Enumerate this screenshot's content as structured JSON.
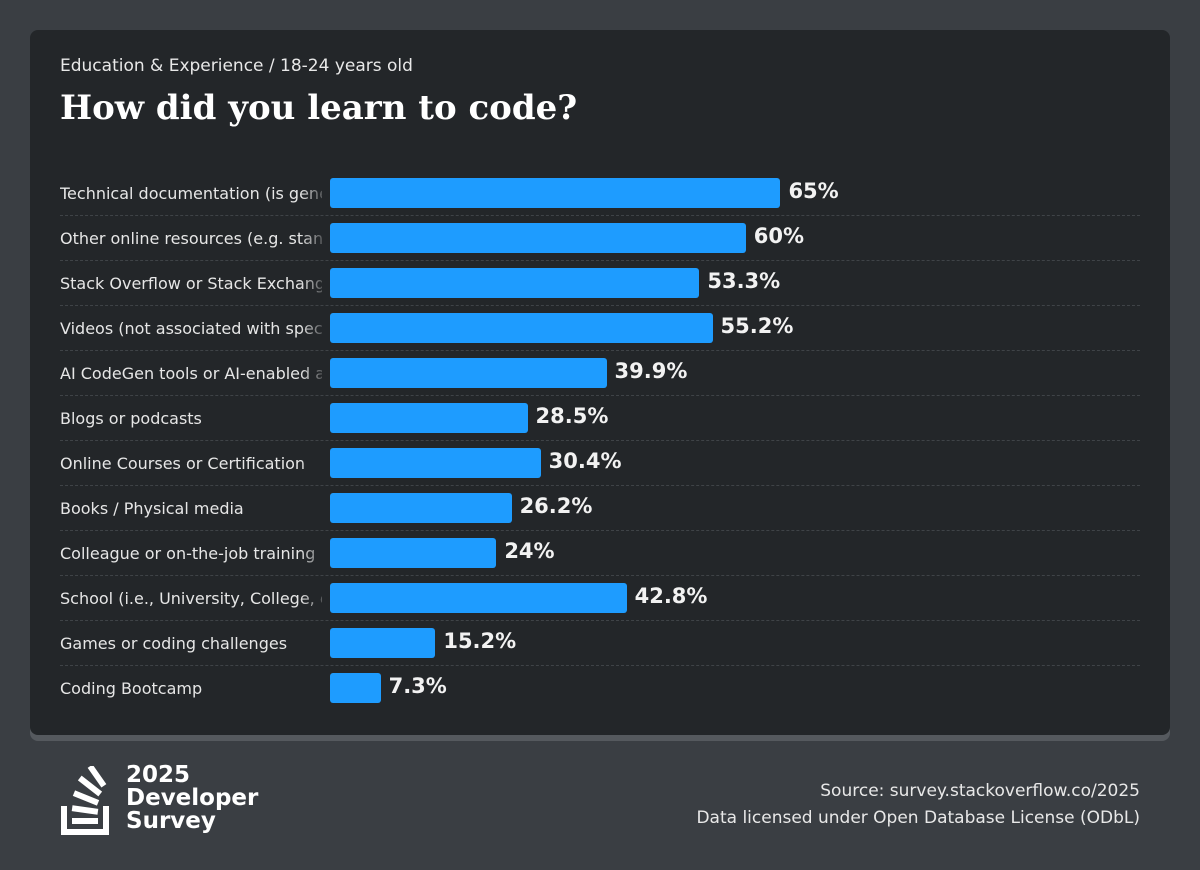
{
  "header": {
    "subtitle": "Education & Experience / 18-24 years old",
    "title": "How did you learn to code?"
  },
  "chart_data": {
    "type": "bar",
    "orientation": "horizontal",
    "title": "How did you learn to code?",
    "subtitle": "Education & Experience / 18-24 years old",
    "categories": [
      "Technical documentation (is generated for/by the tool or system)",
      "Other online resources (e.g. standard search, forum, online community)",
      "Stack Overflow or Stack Exchange",
      "Videos (not associated with specific online course or certification)",
      "AI CodeGen tools or AI-enabled apps",
      "Blogs or podcasts",
      "Online Courses or Certification",
      "Books / Physical media",
      "Colleague or on-the-job training",
      "School (i.e., University, College, etc)",
      "Games or coding challenges",
      "Coding Bootcamp"
    ],
    "values": [
      65,
      60,
      53.3,
      55.2,
      39.9,
      28.5,
      30.4,
      26.2,
      24,
      42.8,
      15.2,
      7.3
    ],
    "value_labels": [
      "65%",
      "60%",
      "53.3%",
      "55.2%",
      "39.9%",
      "28.5%",
      "30.4%",
      "26.2%",
      "24%",
      "42.8%",
      "15.2%",
      "7.3%"
    ],
    "xlim": [
      0,
      100
    ],
    "unit": "%",
    "bar_color": "#1e9cff"
  },
  "footer": {
    "logo_lines": [
      "2025",
      "Developer",
      "Survey"
    ],
    "source": "Source: survey.stackoverflow.co/2025",
    "license": "Data licensed under Open Database License (ODbL)"
  },
  "colors": {
    "background": "#3a3e43",
    "card": "#232629",
    "bar": "#1e9cff",
    "text": "#e6e6e6"
  }
}
